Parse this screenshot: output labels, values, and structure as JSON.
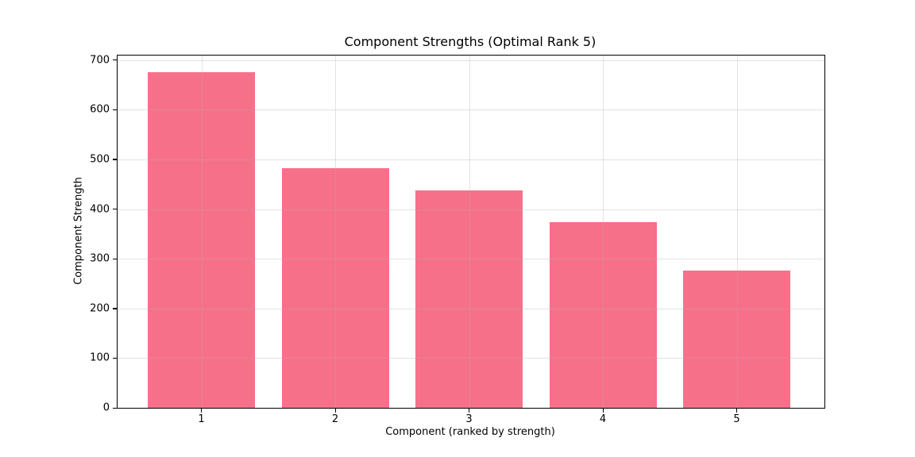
{
  "figure": {
    "background": "#ffffff",
    "text_color": "#000000",
    "spine_color": "#000000"
  },
  "chart_data": {
    "type": "bar",
    "title": "Component Strengths (Optimal Rank 5)",
    "xlabel": "Component (ranked by strength)",
    "ylabel": "Component Strength",
    "categories": [
      "1",
      "2",
      "3",
      "4",
      "5"
    ],
    "values": [
      675,
      482,
      437,
      373,
      276
    ],
    "yticks": [
      0,
      100,
      200,
      300,
      400,
      500,
      600,
      700
    ],
    "ylim": [
      0,
      709
    ],
    "bar_color": "#f7708a",
    "grid": true,
    "grid_color": "#b0b0b0",
    "grid_on_top_of_bars": true,
    "legend": null
  }
}
